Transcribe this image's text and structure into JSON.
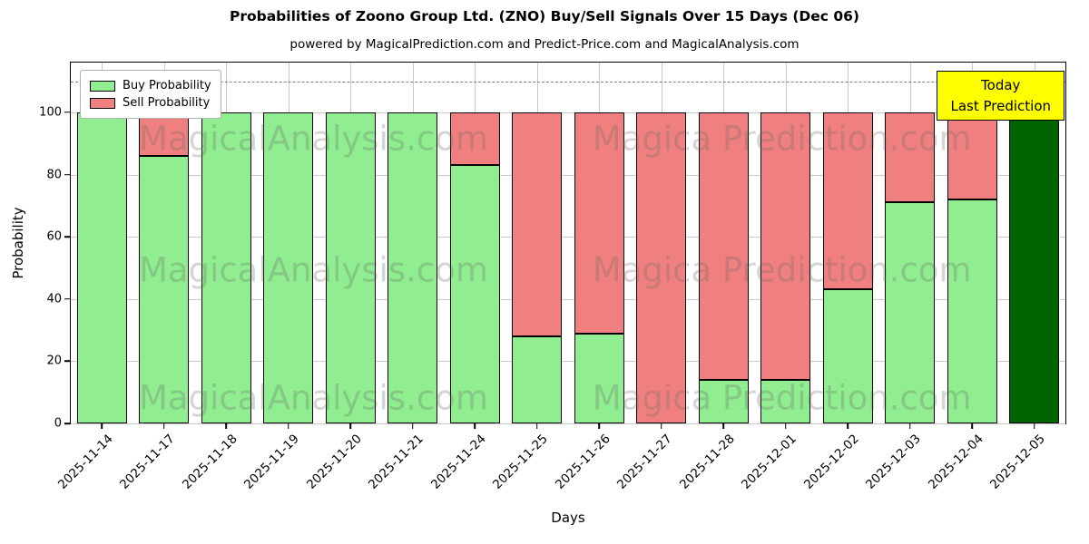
{
  "title": "Probabilities of Zoono Group Ltd. (ZNO) Buy/Sell Signals Over 15 Days (Dec 06)",
  "subtitle": "powered by MagicalPrediction.com and Predict-Price.com and MagicalAnalysis.com",
  "legend": {
    "buy": "Buy Probability",
    "sell": "Sell Probability"
  },
  "annotation_box": {
    "line1": "Today",
    "line2": "Last Prediction"
  },
  "watermarks": {
    "left": "MagicalAnalysis.com",
    "right": "Magica Prediction.com"
  },
  "colors": {
    "buy": "#90ee90",
    "sell": "#f08080",
    "today_bar": "#006400",
    "bar_edge": "#000000",
    "grid": "#c9c9c9",
    "dashed_line": "#7f7f7f",
    "annotation_bg": "#ffff00",
    "watermark": "rgba(105,105,105,0.28)"
  },
  "chart_data": {
    "type": "bar",
    "stacked": true,
    "title": "Probabilities of Zoono Group Ltd. (ZNO) Buy/Sell Signals Over 15 Days (Dec 06)",
    "xlabel": "Days",
    "ylabel": "Probability",
    "categories": [
      "2025-11-14",
      "2025-11-17",
      "2025-11-18",
      "2025-11-19",
      "2025-11-20",
      "2025-11-21",
      "2025-11-24",
      "2025-11-25",
      "2025-11-26",
      "2025-11-27",
      "2025-11-28",
      "2025-12-01",
      "2025-12-02",
      "2025-12-03",
      "2025-12-04",
      "2025-12-05"
    ],
    "series": [
      {
        "name": "Buy Probability",
        "color": "#90ee90",
        "values": [
          100,
          86,
          100,
          100,
          100,
          100,
          83,
          28,
          29,
          0,
          14,
          14,
          43,
          71,
          72,
          100
        ]
      },
      {
        "name": "Sell Probability",
        "color": "#f08080",
        "values": [
          0,
          14,
          0,
          0,
          0,
          0,
          17,
          72,
          71,
          100,
          86,
          86,
          57,
          29,
          28,
          0
        ]
      }
    ],
    "today_bar_index": 15,
    "yticks": [
      0,
      20,
      40,
      60,
      80,
      100
    ],
    "ylim": [
      0,
      116
    ],
    "dashed_line_y": 110,
    "bar_width_fraction": 0.8,
    "grid": true,
    "legend_position": "upper left"
  }
}
